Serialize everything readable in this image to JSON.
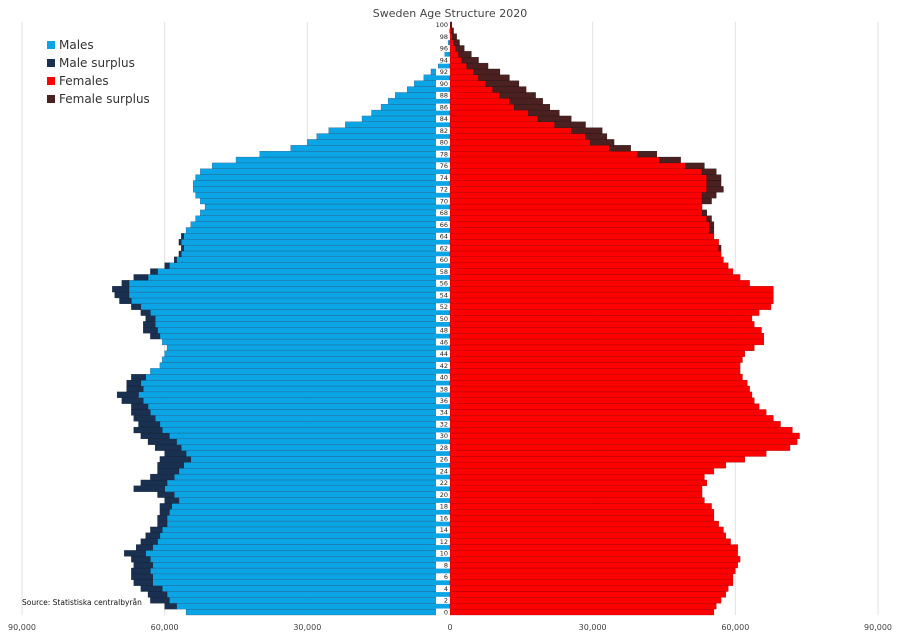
{
  "chart_data": {
    "type": "bar",
    "orientation": "horizontal-pyramid",
    "title": "Sweden Age Structure 2020",
    "source": "Source: Statistiska centralbyrån",
    "xlim": [
      -90000,
      90000
    ],
    "x_ticks": [
      -90000,
      -60000,
      -30000,
      0,
      30000,
      60000,
      90000
    ],
    "x_tick_labels": [
      "90,000",
      "60,000",
      "30,000",
      "0",
      "30,000",
      "60,000",
      "90,000"
    ],
    "age_tick_labels": [
      "100",
      "98",
      "96",
      "94",
      "92",
      "90",
      "88",
      "86",
      "84",
      "82",
      "80",
      "78",
      "76",
      "74",
      "72",
      "70",
      "68",
      "66",
      "64",
      "62",
      "60",
      "58",
      "56",
      "54",
      "52",
      "50",
      "48",
      "46",
      "44",
      "42",
      "40",
      "38",
      "36",
      "34",
      "32",
      "30",
      "28",
      "26",
      "24",
      "22",
      "20",
      "18",
      "16",
      "14",
      "12",
      "10",
      "8",
      "6",
      "4",
      "2",
      "0"
    ],
    "grid": true,
    "legend_position": "top-left",
    "colors": {
      "males": "#0ba5e6",
      "male_surplus": "#1a3050",
      "females": "#ff0000",
      "female_surplus": "#4a2020"
    },
    "legend": [
      {
        "label": "Males",
        "color": "#0ba5e6"
      },
      {
        "label": "Male surplus",
        "color": "#1a3050"
      },
      {
        "label": "Females",
        "color": "#ff0000"
      },
      {
        "label": "Female surplus",
        "color": "#4a2020"
      }
    ],
    "ages": [
      0,
      1,
      2,
      3,
      4,
      5,
      6,
      7,
      8,
      9,
      10,
      11,
      12,
      13,
      14,
      15,
      16,
      17,
      18,
      19,
      20,
      21,
      22,
      23,
      24,
      25,
      26,
      27,
      28,
      29,
      30,
      31,
      32,
      33,
      34,
      35,
      36,
      37,
      38,
      39,
      40,
      41,
      42,
      43,
      44,
      45,
      46,
      47,
      48,
      49,
      50,
      51,
      52,
      53,
      54,
      55,
      56,
      57,
      58,
      59,
      60,
      61,
      62,
      63,
      64,
      65,
      66,
      67,
      68,
      69,
      70,
      71,
      72,
      73,
      74,
      75,
      76,
      77,
      78,
      79,
      80,
      81,
      82,
      83,
      84,
      85,
      86,
      87,
      88,
      89,
      90,
      91,
      92,
      93,
      94,
      95,
      96,
      97,
      98,
      99,
      100
    ],
    "series": [
      {
        "name": "Males",
        "values": [
          55500,
          57500,
          59000,
          59500,
          60500,
          62500,
          62500,
          63000,
          62500,
          63000,
          64000,
          62500,
          61500,
          61000,
          60500,
          59500,
          59500,
          59000,
          58500,
          57000,
          58000,
          60000,
          59500,
          58000,
          57000,
          56000,
          54500,
          55500,
          56500,
          57500,
          59000,
          60500,
          61000,
          62000,
          63000,
          63500,
          64500,
          65500,
          64500,
          65000,
          64000,
          63000,
          61000,
          60500,
          60000,
          59500,
          60500,
          61000,
          61500,
          62000,
          62000,
          63000,
          65000,
          67000,
          67500,
          67500,
          67500,
          63500,
          61500,
          59000,
          57500,
          56500,
          56000,
          56500,
          56000,
          55500,
          54500,
          53500,
          52500,
          51500,
          52500,
          53500,
          54000,
          54000,
          53500,
          52500,
          50000,
          45000,
          40000,
          33500,
          30000,
          28000,
          25500,
          22000,
          18500,
          16500,
          14500,
          13000,
          11500,
          9000,
          7500,
          5500,
          4000,
          2500,
          1600,
          1100,
          700,
          400,
          250,
          100,
          50
        ]
      },
      {
        "name": "Male surplus",
        "values": [
          0,
          2500,
          4000,
          4000,
          4500,
          4000,
          4500,
          4000,
          4000,
          4000,
          4500,
          3500,
          3500,
          3000,
          2500,
          2000,
          2000,
          2000,
          2500,
          3000,
          3500,
          6500,
          5500,
          5000,
          4500,
          5500,
          6500,
          4500,
          5500,
          6000,
          6000,
          6000,
          4500,
          4500,
          4000,
          3500,
          4500,
          4500,
          3500,
          3000,
          3000,
          0,
          0,
          0,
          0,
          0,
          0,
          2000,
          3000,
          2500,
          2000,
          2000,
          2000,
          2500,
          3000,
          3500,
          1500,
          3000,
          1500,
          1000,
          500,
          500,
          500,
          500,
          500,
          0,
          0,
          0,
          0,
          0,
          0,
          0,
          0,
          0,
          0,
          0,
          0,
          0,
          0,
          0,
          0,
          0,
          0,
          0,
          0,
          0,
          0,
          0,
          0,
          0,
          0,
          0,
          0,
          0,
          0,
          0,
          0,
          0,
          0,
          0,
          0
        ]
      },
      {
        "name": "Females",
        "values": [
          55500,
          56000,
          57000,
          58000,
          58500,
          59500,
          59500,
          60000,
          60500,
          61000,
          60500,
          60500,
          59000,
          58000,
          57500,
          56500,
          55500,
          55500,
          55000,
          53500,
          53000,
          53000,
          54000,
          53500,
          55500,
          58000,
          62000,
          66500,
          71500,
          73000,
          73500,
          72000,
          69500,
          68000,
          66500,
          65000,
          64000,
          63500,
          63000,
          62500,
          61500,
          61000,
          61000,
          61500,
          62000,
          64000,
          66000,
          66000,
          65500,
          64000,
          63500,
          65000,
          67500,
          68000,
          68000,
          68000,
          63000,
          61000,
          59500,
          58500,
          57500,
          57000,
          56500,
          56500,
          55500,
          54500,
          54500,
          54000,
          53000,
          53000,
          53000,
          53000,
          54000,
          54000,
          54000,
          53000,
          49500,
          44000,
          39500,
          33500,
          29500,
          28500,
          25500,
          22000,
          18500,
          16500,
          13500,
          12500,
          10500,
          9000,
          7500,
          6000,
          5000,
          3500,
          2500,
          1800,
          1200,
          800,
          500,
          250,
          100
        ]
      },
      {
        "name": "Female surplus",
        "values": [
          0,
          0,
          0,
          0,
          0,
          0,
          0,
          0,
          0,
          0,
          0,
          0,
          0,
          0,
          0,
          0,
          0,
          0,
          0,
          0,
          0,
          0,
          0,
          0,
          0,
          0,
          0,
          0,
          0,
          0,
          0,
          0,
          0,
          0,
          0,
          0,
          0,
          0,
          0,
          0,
          0,
          0,
          0,
          0,
          0,
          0,
          0,
          0,
          0,
          0,
          0,
          0,
          0,
          0,
          0,
          0,
          0,
          0,
          0,
          0,
          0,
          0,
          500,
          0,
          0,
          1000,
          1000,
          1000,
          1000,
          0,
          2000,
          3000,
          3500,
          3000,
          3000,
          3000,
          4000,
          4500,
          4000,
          4500,
          5000,
          4500,
          6500,
          6500,
          7000,
          6500,
          7500,
          7000,
          7500,
          7000,
          7000,
          6500,
          5500,
          4500,
          3500,
          2700,
          1800,
          1200,
          900,
          500,
          300
        ]
      }
    ]
  }
}
